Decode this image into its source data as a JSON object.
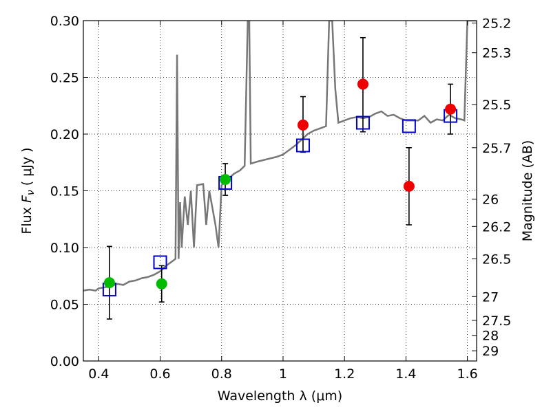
{
  "chart_data": {
    "type": "scatter",
    "xlabel": "Wavelength  λ (μm)",
    "ylabel": "Flux  F_ν  ( μJy )",
    "ylabel_right": "Magnitude (AB)",
    "xlim": [
      0.35,
      1.63
    ],
    "ylim": [
      0.0,
      0.3
    ],
    "grid": true,
    "x_ticks": [
      0.4,
      0.6,
      0.8,
      1.0,
      1.2,
      1.4,
      1.6
    ],
    "x_tick_labels": [
      "0.4",
      "0.6",
      "0.8",
      "1",
      "1.2",
      "1.4",
      "1.6"
    ],
    "y_ticks": [
      0.0,
      0.05,
      0.1,
      0.15,
      0.2,
      0.25,
      0.3
    ],
    "y_tick_labels": [
      "0.00",
      "0.05",
      "0.10",
      "0.15",
      "0.20",
      "0.25",
      "0.30"
    ],
    "right_ticks": [
      {
        "label": "25.2",
        "flux": 0.2979
      },
      {
        "label": "25.3",
        "flux": 0.2717
      },
      {
        "label": "25.5",
        "flux": 0.226
      },
      {
        "label": "25.7",
        "flux": 0.188
      },
      {
        "label": "26",
        "flux": 0.1426
      },
      {
        "label": "26.2",
        "flux": 0.1186
      },
      {
        "label": "26.5",
        "flux": 0.09
      },
      {
        "label": "27",
        "flux": 0.0568
      },
      {
        "label": "27.5",
        "flux": 0.0358
      },
      {
        "label": "28",
        "flux": 0.0226
      },
      {
        "label": "29",
        "flux": 0.009
      }
    ],
    "series": [
      {
        "kind": "line",
        "color": "#777777",
        "points": [
          [
            0.35,
            0.062
          ],
          [
            0.37,
            0.063
          ],
          [
            0.39,
            0.062
          ],
          [
            0.4,
            0.064
          ],
          [
            0.42,
            0.065
          ],
          [
            0.44,
            0.066
          ],
          [
            0.46,
            0.068
          ],
          [
            0.48,
            0.067
          ],
          [
            0.5,
            0.07
          ],
          [
            0.52,
            0.071
          ],
          [
            0.54,
            0.073
          ],
          [
            0.56,
            0.074
          ],
          [
            0.58,
            0.076
          ],
          [
            0.6,
            0.079
          ],
          [
            0.62,
            0.084
          ],
          [
            0.64,
            0.088
          ],
          [
            0.65,
            0.09
          ],
          [
            0.655,
            0.27
          ],
          [
            0.66,
            0.09
          ],
          [
            0.665,
            0.14
          ],
          [
            0.67,
            0.1
          ],
          [
            0.68,
            0.145
          ],
          [
            0.69,
            0.12
          ],
          [
            0.7,
            0.15
          ],
          [
            0.71,
            0.1
          ],
          [
            0.72,
            0.155
          ],
          [
            0.74,
            0.156
          ],
          [
            0.75,
            0.12
          ],
          [
            0.76,
            0.15
          ],
          [
            0.77,
            0.135
          ],
          [
            0.78,
            0.12
          ],
          [
            0.79,
            0.1
          ],
          [
            0.8,
            0.155
          ],
          [
            0.82,
            0.16
          ],
          [
            0.84,
            0.165
          ],
          [
            0.86,
            0.168
          ],
          [
            0.875,
            0.172
          ],
          [
            0.885,
            0.3
          ],
          [
            0.89,
            0.3
          ],
          [
            0.895,
            0.174
          ],
          [
            0.92,
            0.176
          ],
          [
            0.95,
            0.178
          ],
          [
            0.98,
            0.18
          ],
          [
            1.0,
            0.182
          ],
          [
            1.02,
            0.186
          ],
          [
            1.04,
            0.19
          ],
          [
            1.06,
            0.195
          ],
          [
            1.08,
            0.2
          ],
          [
            1.1,
            0.203
          ],
          [
            1.12,
            0.205
          ],
          [
            1.14,
            0.207
          ],
          [
            1.15,
            0.3
          ],
          [
            1.16,
            0.3
          ],
          [
            1.17,
            0.24
          ],
          [
            1.18,
            0.21
          ],
          [
            1.2,
            0.212
          ],
          [
            1.22,
            0.214
          ],
          [
            1.24,
            0.215
          ],
          [
            1.26,
            0.214
          ],
          [
            1.28,
            0.215
          ],
          [
            1.3,
            0.218
          ],
          [
            1.32,
            0.22
          ],
          [
            1.34,
            0.216
          ],
          [
            1.36,
            0.217
          ],
          [
            1.38,
            0.214
          ],
          [
            1.4,
            0.212
          ],
          [
            1.42,
            0.212
          ],
          [
            1.44,
            0.212
          ],
          [
            1.46,
            0.216
          ],
          [
            1.48,
            0.21
          ],
          [
            1.5,
            0.213
          ],
          [
            1.52,
            0.212
          ],
          [
            1.54,
            0.217
          ],
          [
            1.56,
            0.214
          ],
          [
            1.58,
            0.213
          ],
          [
            1.59,
            0.212
          ],
          [
            1.6,
            0.3
          ],
          [
            1.61,
            0.3
          ],
          [
            1.63,
            0.3
          ]
        ]
      },
      {
        "kind": "points",
        "color": "#00bb00",
        "points": [
          {
            "x": 0.435,
            "y": 0.069,
            "err": [
              0.037,
              0.101
            ]
          },
          {
            "x": 0.605,
            "y": 0.068,
            "err": [
              0.052,
              0.084
            ]
          },
          {
            "x": 0.812,
            "y": 0.16,
            "err": [
              0.146,
              0.174
            ]
          }
        ]
      },
      {
        "kind": "points",
        "color": "#ee0000",
        "points": [
          {
            "x": 1.065,
            "y": 0.208,
            "err": [
              0.184,
              0.233
            ]
          },
          {
            "x": 1.26,
            "y": 0.244,
            "err": [
              0.202,
              0.285
            ]
          },
          {
            "x": 1.41,
            "y": 0.154,
            "err": [
              0.12,
              0.188
            ]
          },
          {
            "x": 1.545,
            "y": 0.222,
            "err": [
              0.2,
              0.244
            ]
          }
        ]
      },
      {
        "kind": "squares",
        "color": "#0000cc",
        "points": [
          {
            "x": 0.435,
            "y": 0.063
          },
          {
            "x": 0.6,
            "y": 0.087
          },
          {
            "x": 0.812,
            "y": 0.157
          },
          {
            "x": 1.065,
            "y": 0.19
          },
          {
            "x": 1.26,
            "y": 0.21
          },
          {
            "x": 1.41,
            "y": 0.207
          },
          {
            "x": 1.545,
            "y": 0.216
          }
        ]
      }
    ]
  }
}
